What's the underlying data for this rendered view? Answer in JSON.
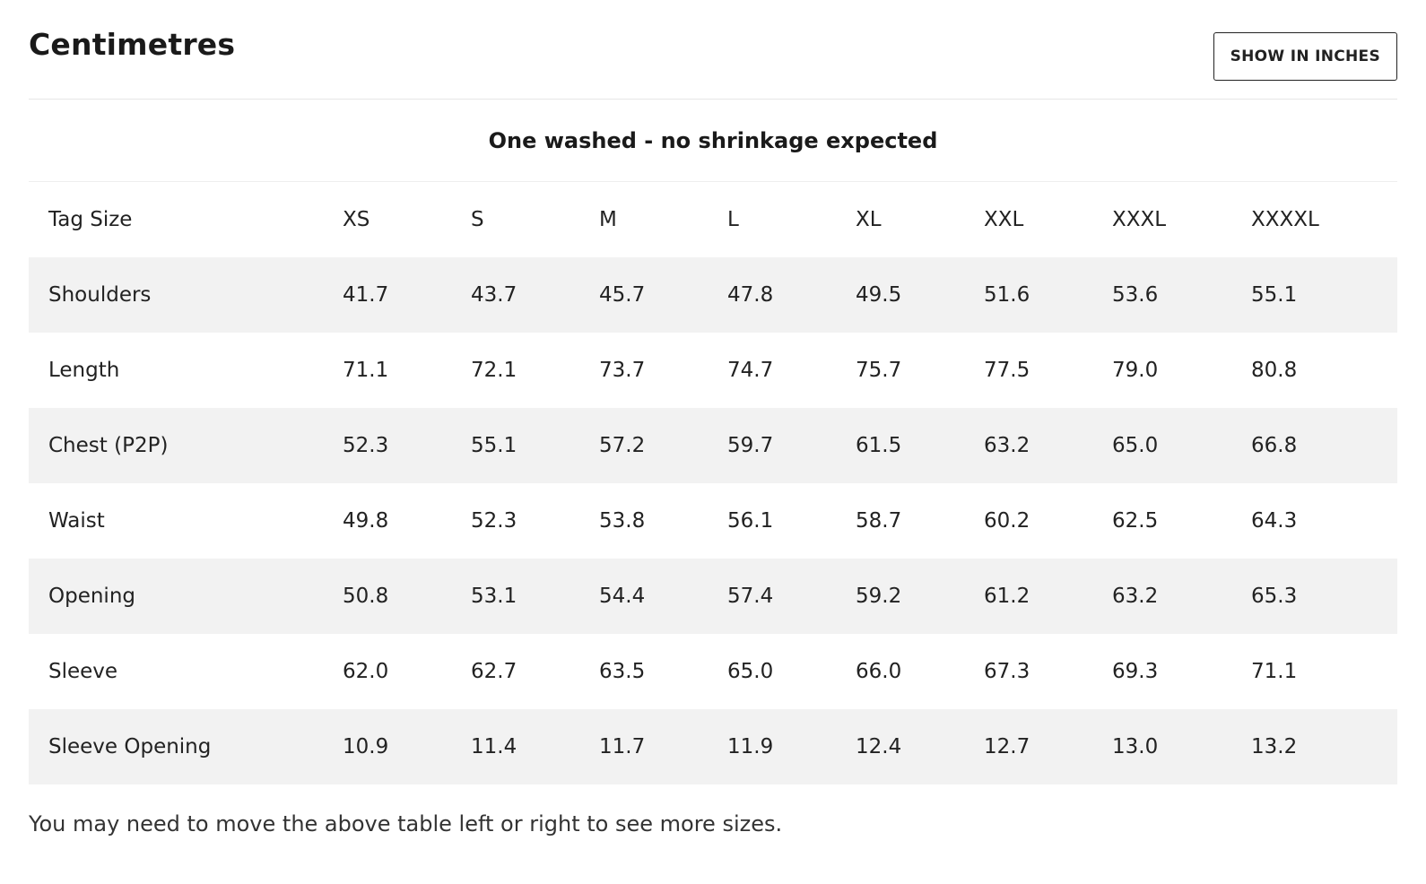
{
  "header": {
    "title": "Centimetres",
    "toggle_button": "SHOW IN INCHES"
  },
  "note": "One washed - no shrinkage expected",
  "table": {
    "columns": [
      "Tag Size",
      "XS",
      "S",
      "M",
      "L",
      "XL",
      "XXL",
      "XXXL",
      "XXXXL"
    ],
    "rows": [
      {
        "label": "Shoulders",
        "values": [
          "41.7",
          "43.7",
          "45.7",
          "47.8",
          "49.5",
          "51.6",
          "53.6",
          "55.1"
        ]
      },
      {
        "label": "Length",
        "values": [
          "71.1",
          "72.1",
          "73.7",
          "74.7",
          "75.7",
          "77.5",
          "79.0",
          "80.8"
        ]
      },
      {
        "label": "Chest (P2P)",
        "values": [
          "52.3",
          "55.1",
          "57.2",
          "59.7",
          "61.5",
          "63.2",
          "65.0",
          "66.8"
        ]
      },
      {
        "label": "Waist",
        "values": [
          "49.8",
          "52.3",
          "53.8",
          "56.1",
          "58.7",
          "60.2",
          "62.5",
          "64.3"
        ]
      },
      {
        "label": "Opening",
        "values": [
          "50.8",
          "53.1",
          "54.4",
          "57.4",
          "59.2",
          "61.2",
          "63.2",
          "65.3"
        ]
      },
      {
        "label": "Sleeve",
        "values": [
          "62.0",
          "62.7",
          "63.5",
          "65.0",
          "66.0",
          "67.3",
          "69.3",
          "71.1"
        ]
      },
      {
        "label": "Sleeve Opening",
        "values": [
          "10.9",
          "11.4",
          "11.7",
          "11.9",
          "12.4",
          "12.7",
          "13.0",
          "13.2"
        ]
      }
    ]
  },
  "footnote": "You may need to move the above table left or right to see more sizes."
}
